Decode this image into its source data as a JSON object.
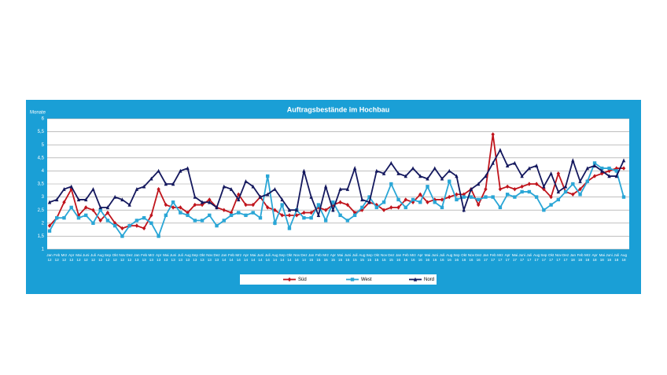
{
  "chart_data": {
    "type": "line",
    "title": "Auftragsbestände im Hochbau",
    "y_label": "Monate",
    "categories": [
      "Jan 12",
      "Feb 12",
      "Mrz 12",
      "Apr 12",
      "Mai 12",
      "Juni 12",
      "Juli 12",
      "Aug 12",
      "Sep 12",
      "Okt 12",
      "Nov 12",
      "Dez 12",
      "Jan 13",
      "Feb 13",
      "Mrz 13",
      "Apr 13",
      "Mai 13",
      "Juni 13",
      "Juli 13",
      "Aug 13",
      "Sep 13",
      "Okt 13",
      "Nov 13",
      "Dez 13",
      "Jan 14",
      "Feb 14",
      "Mrz 14",
      "Apr 14",
      "Mai 14",
      "Juni 14",
      "Juli 14",
      "Aug 14",
      "Sep 14",
      "Okt 14",
      "Nov 14",
      "Dez 14",
      "Jan 15",
      "Feb 15",
      "Mrz 15",
      "Apr 15",
      "Mai 15",
      "Juni 15",
      "Juli 15",
      "Aug 15",
      "Sep 15",
      "Okt 15",
      "Nov 15",
      "Dez 15",
      "Jan 16",
      "Feb 16",
      "Mrz 16",
      "Apr 16",
      "Mai 16",
      "Juni 16",
      "Juli 16",
      "Aug 16",
      "Sep 16",
      "Okt 16",
      "Nov 16",
      "Dez 16",
      "Jan 17",
      "Feb 17",
      "Mrz 17",
      "Apr 17",
      "Mai 17",
      "Juni 17",
      "Juli 17",
      "Aug 17",
      "Sep 17",
      "Okt 17",
      "Nov 17",
      "Dez 17",
      "Jan 18",
      "Feb 18",
      "Mrz 18",
      "Apr 18",
      "Mai 18",
      "Juni 18",
      "Juli 18",
      "Aug 18"
    ],
    "series": [
      {
        "name": "Süd",
        "color": "#c0141c",
        "marker": "diamond",
        "values": [
          1.9,
          2.2,
          2.8,
          3.3,
          2.3,
          2.6,
          2.5,
          2.1,
          2.4,
          2.0,
          1.8,
          1.9,
          1.9,
          1.8,
          2.3,
          3.3,
          2.7,
          2.6,
          2.6,
          2.4,
          2.7,
          2.7,
          2.9,
          2.6,
          2.5,
          2.4,
          3.1,
          2.7,
          2.7,
          3.0,
          2.6,
          2.5,
          2.3,
          2.3,
          2.3,
          2.4,
          2.4,
          2.6,
          2.5,
          2.7,
          2.8,
          2.7,
          2.4,
          2.5,
          2.8,
          2.7,
          2.5,
          2.6,
          2.6,
          2.9,
          2.8,
          3.1,
          2.8,
          2.9,
          2.9,
          3.0,
          3.1,
          3.1,
          3.3,
          2.7,
          3.3,
          5.4,
          3.3,
          3.4,
          3.3,
          3.4,
          3.5,
          3.5,
          3.3,
          3.0,
          3.9,
          3.2,
          3.1,
          3.3,
          3.6,
          3.8,
          3.9,
          4.0,
          4.1,
          4.1
        ]
      },
      {
        "name": "West",
        "color": "#2aa6d6",
        "marker": "square",
        "values": [
          1.7,
          2.2,
          2.2,
          2.6,
          2.2,
          2.3,
          2.0,
          2.5,
          2.1,
          1.9,
          1.5,
          1.9,
          2.1,
          2.2,
          2.0,
          1.5,
          2.3,
          2.8,
          2.4,
          2.3,
          2.1,
          2.1,
          2.3,
          1.9,
          2.1,
          2.3,
          2.4,
          2.3,
          2.4,
          2.2,
          3.8,
          2.0,
          2.7,
          1.8,
          2.5,
          2.2,
          2.2,
          2.7,
          2.1,
          2.8,
          2.3,
          2.1,
          2.3,
          2.6,
          3.0,
          2.6,
          2.8,
          3.5,
          2.9,
          2.6,
          2.9,
          2.8,
          3.4,
          2.8,
          2.6,
          3.6,
          2.9,
          3.0,
          3.0,
          2.9,
          3.0,
          3.0,
          2.6,
          3.1,
          3.0,
          3.2,
          3.2,
          3.0,
          2.5,
          2.7,
          2.9,
          3.2,
          3.5,
          3.1,
          3.6,
          4.3,
          4.1,
          4.1,
          4.0,
          3.0
        ]
      },
      {
        "name": "Nord",
        "color": "#14185e",
        "marker": "triangle",
        "values": [
          2.8,
          2.9,
          3.3,
          3.4,
          2.9,
          2.9,
          3.3,
          2.6,
          2.6,
          3.0,
          2.9,
          2.7,
          3.3,
          3.4,
          3.7,
          4.0,
          3.5,
          3.5,
          4.0,
          4.1,
          3.0,
          2.8,
          2.8,
          2.6,
          3.4,
          3.3,
          2.9,
          3.6,
          3.4,
          3.0,
          3.1,
          3.3,
          2.9,
          2.5,
          2.5,
          4.0,
          3.0,
          2.3,
          3.4,
          2.5,
          3.3,
          3.3,
          4.1,
          2.9,
          2.8,
          4.0,
          3.9,
          4.3,
          3.9,
          3.8,
          4.1,
          3.8,
          3.7,
          4.1,
          3.7,
          4.0,
          3.8,
          2.5,
          3.3,
          3.5,
          3.8,
          4.3,
          4.8,
          4.2,
          4.3,
          3.8,
          4.1,
          4.2,
          3.4,
          3.9,
          3.2,
          3.4,
          4.4,
          3.6,
          4.1,
          4.2,
          4.0,
          3.8,
          3.8,
          4.4
        ]
      }
    ],
    "ylim": [
      1,
      6
    ],
    "yticks": [
      1,
      {
        "value": 1.5,
        "label": "1,5"
      },
      2,
      {
        "value": 2.5,
        "label": "2,5"
      },
      3,
      {
        "value": 3.5,
        "label": "3,5"
      },
      4,
      {
        "value": 4.5,
        "label": "4,5"
      },
      5,
      {
        "value": 5.5,
        "label": "5,5"
      },
      6
    ],
    "grid": true,
    "legend": "bottom",
    "background": "#1a9fd6"
  }
}
